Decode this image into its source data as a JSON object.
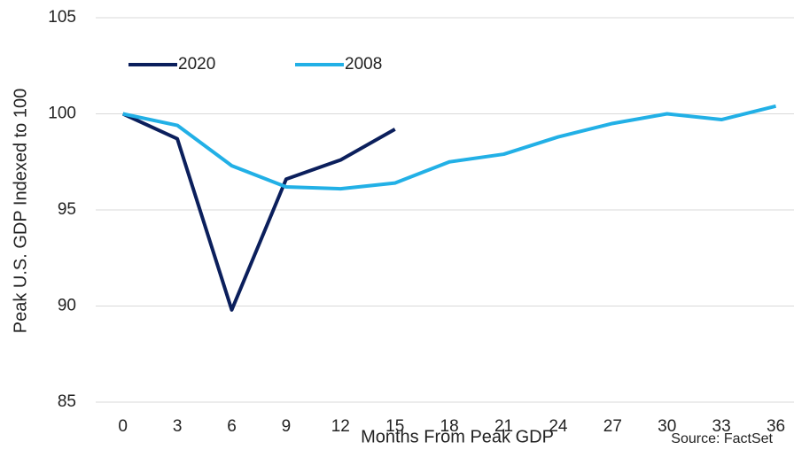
{
  "chart_data": {
    "type": "line",
    "x": [
      0,
      3,
      6,
      9,
      12,
      15,
      18,
      21,
      24,
      27,
      30,
      33,
      36
    ],
    "series": [
      {
        "name": "2020",
        "color": "#0b1f5c",
        "values": [
          100,
          98.7,
          89.8,
          96.6,
          97.6,
          99.2,
          null,
          null,
          null,
          null,
          null,
          null,
          null
        ]
      },
      {
        "name": "2008",
        "color": "#22b0e6",
        "values": [
          100,
          99.4,
          97.3,
          96.2,
          96.1,
          96.4,
          97.5,
          97.9,
          98.8,
          99.5,
          100,
          99.7,
          100.4
        ]
      }
    ],
    "xlabel": "Months From Peak GDP",
    "ylabel": "Peak U.S. GDP Indexed to 100",
    "annotation": "Source: FactSet",
    "xlim": [
      -1.5,
      37
    ],
    "xticks": [
      0,
      3,
      6,
      9,
      12,
      15,
      18,
      21,
      24,
      27,
      30,
      33,
      36
    ],
    "ylim": [
      85,
      105
    ],
    "yticks": [
      85,
      90,
      95,
      100,
      105
    ],
    "grid": true,
    "legend": "top-left"
  }
}
